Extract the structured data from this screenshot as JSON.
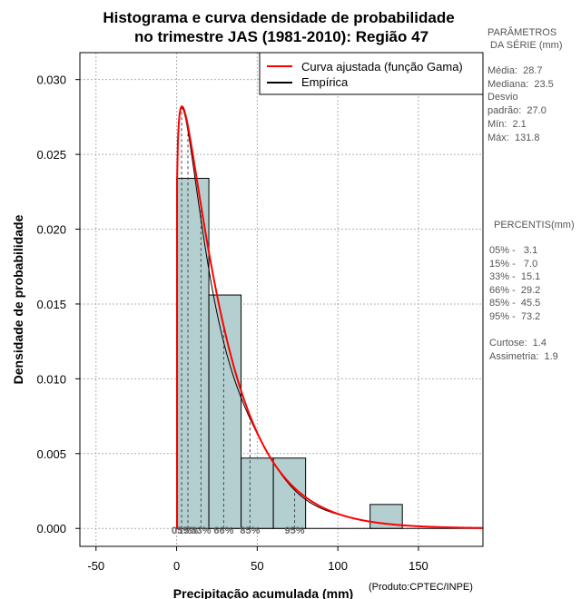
{
  "chart_data": {
    "type": "histogram",
    "title": [
      "Histograma e curva densidade de probabilidade",
      "no trimestre JAS (1981-2010): Região 47"
    ],
    "xlabel": "Precipitação acumulada (mm)",
    "ylabel": "Densidade de probabilidade",
    "credit": "(Produto:CPTEC/INPE)",
    "xlim": [
      -60,
      190
    ],
    "ylim": [
      -0.0012,
      0.0318
    ],
    "x_ticks": [
      -50,
      0,
      50,
      100,
      150
    ],
    "x_tick_labels": [
      "-50",
      "0",
      "50",
      "100",
      "150"
    ],
    "y_ticks": [
      0.0,
      0.005,
      0.01,
      0.015,
      0.02,
      0.025,
      0.03
    ],
    "y_tick_labels": [
      "0.000",
      "0.005",
      "0.010",
      "0.015",
      "0.020",
      "0.025",
      "0.030"
    ],
    "grid": true,
    "bins": [
      {
        "x0": 0,
        "x1": 20,
        "density": 0.0234
      },
      {
        "x0": 20,
        "x1": 40,
        "density": 0.0156
      },
      {
        "x0": 40,
        "x1": 60,
        "density": 0.0047
      },
      {
        "x0": 60,
        "x1": 80,
        "density": 0.0047
      },
      {
        "x0": 80,
        "x1": 100,
        "density": 0.0
      },
      {
        "x0": 100,
        "x1": 120,
        "density": 0.0
      },
      {
        "x0": 120,
        "x1": 140,
        "density": 0.0016
      }
    ],
    "gamma_fit": {
      "shape": 1.13,
      "scale": 25.4,
      "label": "Curva ajustada (função Gama)",
      "color": "#ff0000"
    },
    "empirical": {
      "label": "Empírica",
      "color": "#000000"
    },
    "percentile_lines": [
      {
        "value": 3.1,
        "label": "05%"
      },
      {
        "value": 7.0,
        "label": "15%"
      },
      {
        "value": 15.1,
        "label": "33%"
      },
      {
        "value": 29.2,
        "label": "66%"
      },
      {
        "value": 45.5,
        "label": "85%"
      },
      {
        "value": 73.2,
        "label": "95%"
      }
    ],
    "bar_fill": "#b3cfcf",
    "legend_position": "top-right"
  },
  "side_panel": {
    "params_title": [
      "PARÂMETROS",
      " DA SÉRIE (mm)"
    ],
    "params": [
      "Média:  28.7",
      "Mediana:  23.5",
      "Desvio",
      "padrão:  27.0",
      "Mín:  2.1",
      "Máx:  131.8"
    ],
    "percentis_title": "PERCENTIS(mm)",
    "percentis": [
      "05% -   3.1",
      "15% -   7.0",
      "33% -  15.1",
      "66% -  29.2",
      "85% -  45.5",
      "95% -  73.2"
    ],
    "stats": [
      "Curtose:  1.4",
      "Assimetria:  1.9"
    ]
  }
}
